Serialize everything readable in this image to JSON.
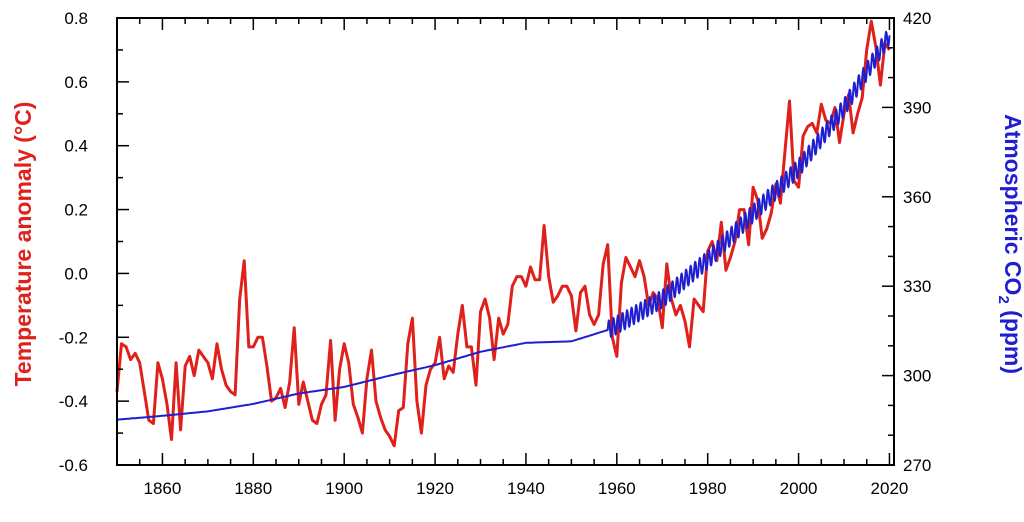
{
  "chart_data": {
    "type": "line",
    "title": "",
    "xlabel": "",
    "ylabel_left": "Temperature anomaly (°C)",
    "ylabel_right_main": "Atmospheric CO",
    "ylabel_right_sub": "2",
    "ylabel_right_unit": " (ppm)",
    "xlim": [
      1850,
      2021
    ],
    "ylim_left": [
      -0.6,
      0.8
    ],
    "ylim_right": [
      270,
      420
    ],
    "x_ticks": [
      1860,
      1880,
      1900,
      1920,
      1940,
      1960,
      1980,
      2000,
      2020
    ],
    "y_ticks_left": [
      "-0.6",
      "-0.4",
      "-0.2",
      "0.0",
      "0.2",
      "0.4",
      "0.6",
      "0.8"
    ],
    "y_ticks_right": [
      "270",
      "300",
      "330",
      "360",
      "390",
      "420"
    ],
    "grid": false,
    "legend": "none",
    "series": [
      {
        "axis": "left",
        "color": "#e0201b",
        "x": [
          1850,
          1851,
          1852,
          1853,
          1854,
          1855,
          1856,
          1857,
          1858,
          1859,
          1860,
          1861,
          1862,
          1863,
          1864,
          1865,
          1866,
          1867,
          1868,
          1869,
          1870,
          1871,
          1872,
          1873,
          1874,
          1875,
          1876,
          1877,
          1878,
          1879,
          1880,
          1881,
          1882,
          1883,
          1884,
          1885,
          1886,
          1887,
          1888,
          1889,
          1890,
          1891,
          1892,
          1893,
          1894,
          1895,
          1896,
          1897,
          1898,
          1899,
          1900,
          1901,
          1902,
          1903,
          1904,
          1905,
          1906,
          1907,
          1908,
          1909,
          1910,
          1911,
          1912,
          1913,
          1914,
          1915,
          1916,
          1917,
          1918,
          1919,
          1920,
          1921,
          1922,
          1923,
          1924,
          1925,
          1926,
          1927,
          1928,
          1929,
          1930,
          1931,
          1932,
          1933,
          1934,
          1935,
          1936,
          1937,
          1938,
          1939,
          1940,
          1941,
          1942,
          1943,
          1944,
          1945,
          1946,
          1947,
          1948,
          1949,
          1950,
          1951,
          1952,
          1953,
          1954,
          1955,
          1956,
          1957,
          1958,
          1959,
          1960,
          1961,
          1962,
          1963,
          1964,
          1965,
          1966,
          1967,
          1968,
          1969,
          1970,
          1971,
          1972,
          1973,
          1974,
          1975,
          1976,
          1977,
          1978,
          1979,
          1980,
          1981,
          1982,
          1983,
          1984,
          1985,
          1986,
          1987,
          1988,
          1989,
          1990,
          1991,
          1992,
          1993,
          1994,
          1995,
          1996,
          1997,
          1998,
          1999,
          2000,
          2001,
          2002,
          2003,
          2004,
          2005,
          2006,
          2007,
          2008,
          2009,
          2010,
          2011,
          2012,
          2013,
          2014,
          2015,
          2016,
          2017,
          2018,
          2019,
          2020
        ],
        "y": [
          -0.37,
          -0.22,
          -0.23,
          -0.27,
          -0.25,
          -0.28,
          -0.37,
          -0.46,
          -0.47,
          -0.28,
          -0.33,
          -0.41,
          -0.52,
          -0.28,
          -0.49,
          -0.29,
          -0.26,
          -0.32,
          -0.24,
          -0.26,
          -0.28,
          -0.33,
          -0.22,
          -0.3,
          -0.35,
          -0.37,
          -0.38,
          -0.08,
          0.04,
          -0.23,
          -0.23,
          -0.2,
          -0.2,
          -0.29,
          -0.4,
          -0.39,
          -0.36,
          -0.42,
          -0.34,
          -0.17,
          -0.41,
          -0.34,
          -0.4,
          -0.46,
          -0.47,
          -0.41,
          -0.38,
          -0.21,
          -0.46,
          -0.3,
          -0.22,
          -0.28,
          -0.41,
          -0.45,
          -0.5,
          -0.33,
          -0.24,
          -0.4,
          -0.45,
          -0.49,
          -0.51,
          -0.54,
          -0.43,
          -0.42,
          -0.22,
          -0.14,
          -0.4,
          -0.5,
          -0.35,
          -0.3,
          -0.28,
          -0.2,
          -0.33,
          -0.29,
          -0.31,
          -0.19,
          -0.1,
          -0.23,
          -0.23,
          -0.35,
          -0.12,
          -0.08,
          -0.14,
          -0.27,
          -0.14,
          -0.19,
          -0.16,
          -0.04,
          -0.01,
          -0.01,
          -0.04,
          0.02,
          -0.02,
          -0.02,
          0.15,
          -0.01,
          -0.09,
          -0.07,
          -0.04,
          -0.04,
          -0.07,
          -0.18,
          -0.06,
          -0.04,
          -0.13,
          -0.16,
          -0.13,
          0.03,
          0.09,
          -0.2,
          -0.26,
          -0.03,
          0.05,
          0.02,
          -0.01,
          0.04,
          -0.01,
          -0.1,
          -0.06,
          -0.08,
          -0.17,
          0.03,
          -0.08,
          -0.13,
          -0.1,
          -0.15,
          -0.23,
          -0.08,
          -0.1,
          -0.12,
          0.07,
          0.1,
          0.04,
          0.16,
          0.01,
          0.05,
          0.1,
          0.2,
          0.2,
          0.09,
          0.27,
          0.23,
          0.11,
          0.14,
          0.19,
          0.28,
          0.22,
          0.38,
          0.54,
          0.29,
          0.27,
          0.43,
          0.46,
          0.47,
          0.44,
          0.53,
          0.48,
          0.47,
          0.52,
          0.41,
          0.5,
          0.56,
          0.44,
          0.5,
          0.55,
          0.7,
          0.79,
          0.71,
          0.59,
          0.72,
          0.7
        ]
      },
      {
        "axis": "right",
        "color": "#1f1fd0",
        "x": [
          1850,
          1860,
          1870,
          1880,
          1890,
          1900,
          1910,
          1920,
          1930,
          1940,
          1950,
          1958,
          1960,
          1970,
          1980,
          1990,
          2000,
          2010,
          2020
        ],
        "y": [
          285.2,
          286.5,
          288.0,
          290.5,
          294.0,
          296.2,
          300.0,
          303.5,
          308.0,
          311.0,
          311.5,
          315.3,
          317.0,
          325.7,
          338.8,
          354.4,
          369.6,
          389.9,
          414.2
        ],
        "seasonal_cycle_from": 1958,
        "seasonal_amplitude_ppm": 3
      }
    ]
  }
}
